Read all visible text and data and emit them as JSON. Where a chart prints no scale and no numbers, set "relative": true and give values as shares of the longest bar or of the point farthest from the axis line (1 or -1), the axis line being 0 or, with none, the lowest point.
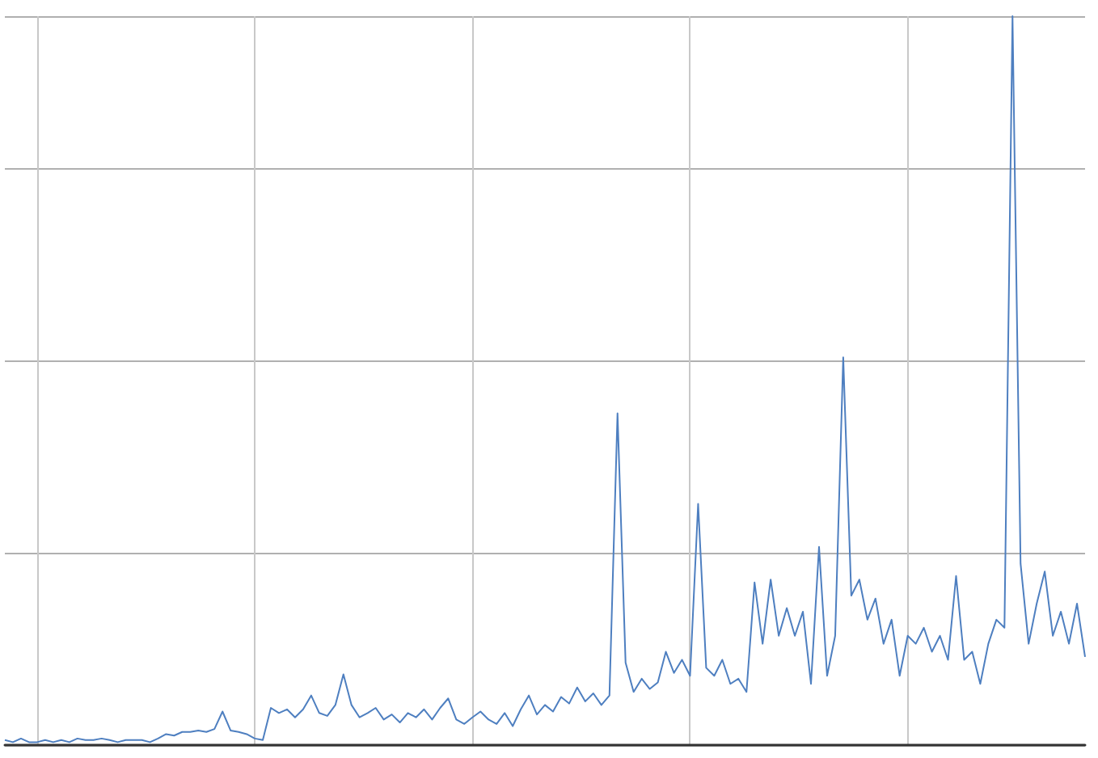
{
  "chart_data": {
    "type": "line",
    "relative": true,
    "grid": true,
    "marker": "none",
    "line_style": "solid",
    "categories": [
      null,
      null,
      null,
      null,
      null,
      null,
      null,
      null,
      null,
      null,
      null,
      null,
      null,
      null,
      null,
      null,
      null,
      null,
      null,
      null,
      null,
      null,
      null,
      null,
      null,
      null,
      null,
      null,
      null,
      null,
      null,
      null,
      null,
      null,
      null,
      null,
      null,
      null,
      null,
      null,
      null,
      null,
      null,
      null,
      null,
      null,
      null,
      null,
      null,
      null,
      null,
      null,
      null,
      null,
      null,
      null,
      null,
      null,
      null,
      null,
      null,
      null,
      null,
      null,
      null,
      null,
      null,
      null,
      null,
      null,
      null,
      null,
      null,
      null,
      null,
      null,
      null,
      null,
      null,
      null,
      null,
      null,
      null,
      null,
      null,
      null,
      null,
      null,
      null,
      null,
      null,
      null,
      null,
      null,
      null,
      null,
      null,
      null,
      null,
      null,
      null,
      null,
      null,
      null,
      null,
      null,
      null,
      null,
      null,
      null,
      null,
      null,
      null,
      null,
      null,
      null,
      null,
      null,
      null,
      null,
      null,
      null,
      null,
      null,
      null,
      null,
      null,
      null,
      null,
      null,
      null,
      null,
      null,
      null,
      null
    ],
    "series": [
      {
        "color": "#4e7fc0",
        "values": [
          0.007,
          0.004,
          0.009,
          0.004,
          0.004,
          0.007,
          0.004,
          0.007,
          0.004,
          0.009,
          0.007,
          0.007,
          0.009,
          0.007,
          0.004,
          0.007,
          0.007,
          0.007,
          0.004,
          0.009,
          0.015,
          0.013,
          0.018,
          0.018,
          0.02,
          0.018,
          0.022,
          0.046,
          0.02,
          0.018,
          0.015,
          0.009,
          0.007,
          0.051,
          0.044,
          0.049,
          0.038,
          0.049,
          0.068,
          0.044,
          0.04,
          0.055,
          0.097,
          0.055,
          0.038,
          0.044,
          0.051,
          0.035,
          0.042,
          0.031,
          0.044,
          0.038,
          0.049,
          0.035,
          0.051,
          0.064,
          0.035,
          0.029,
          0.038,
          0.046,
          0.035,
          0.029,
          0.044,
          0.026,
          0.049,
          0.068,
          0.042,
          0.055,
          0.046,
          0.066,
          0.057,
          0.079,
          0.06,
          0.071,
          0.055,
          0.068,
          0.455,
          0.113,
          0.073,
          0.091,
          0.077,
          0.086,
          0.128,
          0.099,
          0.117,
          0.095,
          0.331,
          0.106,
          0.095,
          0.117,
          0.084,
          0.091,
          0.073,
          0.223,
          0.139,
          0.227,
          0.15,
          0.188,
          0.15,
          0.183,
          0.084,
          0.272,
          0.095,
          0.15,
          0.532,
          0.205,
          0.227,
          0.172,
          0.201,
          0.139,
          0.172,
          0.095,
          0.15,
          0.139,
          0.161,
          0.128,
          0.15,
          0.117,
          0.232,
          0.117,
          0.128,
          0.084,
          0.139,
          0.172,
          0.161,
          1.0,
          0.249,
          0.139,
          0.194,
          0.238,
          0.15,
          0.183,
          0.139,
          0.194,
          0.121
        ]
      }
    ]
  }
}
